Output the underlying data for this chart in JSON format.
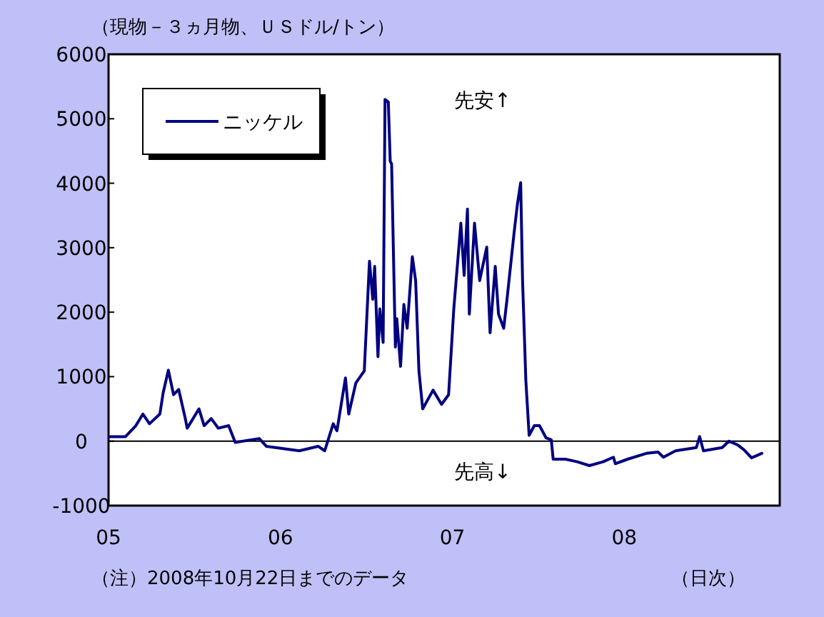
{
  "chart_data": {
    "type": "line",
    "ylabel": "（現物－３ヵ月物、ＵＳドル/トン）",
    "xlabel": "（日次）",
    "x": [
      "2005-01-03",
      "2005-02-06",
      "2005-02-28",
      "2005-03-15",
      "2005-03-29",
      "2005-04-20",
      "2005-04-27",
      "2005-05-08",
      "2005-05-19",
      "2005-05-30",
      "2005-06-13",
      "2005-06-17",
      "2005-07-12",
      "2005-07-23",
      "2005-08-07",
      "2005-08-22",
      "2005-09-13",
      "2005-09-27",
      "2005-11-17",
      "2005-12-02",
      "2006-02-10",
      "2006-03-22",
      "2006-04-05",
      "2006-04-23",
      "2006-05-01",
      "2006-05-19",
      "2006-05-26",
      "2006-06-10",
      "2006-06-28",
      "2006-07-09",
      "2006-07-16",
      "2006-07-20",
      "2006-07-27",
      "2006-07-31",
      "2006-08-07",
      "2006-08-11",
      "2006-08-18",
      "2006-08-22",
      "2006-08-25",
      "2006-09-02",
      "2006-09-05",
      "2006-09-13",
      "2006-09-20",
      "2006-09-27",
      "2006-10-08",
      "2006-10-15",
      "2006-10-22",
      "2006-10-30",
      "2006-11-21",
      "2006-12-09",
      "2006-12-24",
      "2007-01-04",
      "2007-01-19",
      "2007-01-26",
      "2007-02-02",
      "2007-02-06",
      "2007-02-17",
      "2007-02-28",
      "2007-03-15",
      "2007-03-22",
      "2007-04-02",
      "2007-04-09",
      "2007-04-20",
      "2007-04-27",
      "2007-05-12",
      "2007-05-19",
      "2007-05-26",
      "2007-05-30",
      "2007-06-06",
      "2007-06-13",
      "2007-06-24",
      "2007-07-05",
      "2007-07-19",
      "2007-07-30",
      "2007-08-03",
      "2007-08-29",
      "2007-09-23",
      "2007-10-19",
      "2007-11-17",
      "2007-12-09",
      "2007-12-13",
      "2008-01-08",
      "2008-02-17",
      "2008-03-13",
      "2008-03-24",
      "2008-04-19",
      "2008-06-02",
      "2008-06-09",
      "2008-06-17",
      "2008-07-27",
      "2008-08-10",
      "2008-08-29",
      "2008-09-12",
      "2008-09-27",
      "2008-10-19"
    ],
    "series": [
      {
        "name": "ニッケル",
        "color": "#000080",
        "values": [
          70,
          70,
          240,
          420,
          270,
          420,
          750,
          1100,
          720,
          800,
          350,
          200,
          500,
          240,
          350,
          200,
          240,
          -20,
          40,
          -80,
          -150,
          -80,
          -150,
          270,
          160,
          980,
          420,
          900,
          1090,
          2790,
          2200,
          2710,
          1310,
          2050,
          1530,
          5300,
          5260,
          4340,
          4300,
          1460,
          1900,
          1160,
          2120,
          1750,
          2860,
          2490,
          1090,
          500,
          790,
          570,
          720,
          2050,
          3380,
          2570,
          3600,
          1970,
          3380,
          2490,
          3010,
          1680,
          2710,
          1970,
          1750,
          2200,
          3230,
          3670,
          4010,
          2490,
          940,
          90,
          240,
          240,
          50,
          20,
          -280,
          -280,
          -320,
          -380,
          -320,
          -250,
          -350,
          -280,
          -190,
          -170,
          -250,
          -150,
          -100,
          70,
          -150,
          -100,
          0,
          -60,
          -140,
          -260,
          -190
        ]
      }
    ],
    "xlim": [
      "2005-01-01",
      "2008-11-26"
    ],
    "xticks": [
      {
        "value": "2005-01-01",
        "label": "05"
      },
      {
        "value": "2006-01-01",
        "label": "06"
      },
      {
        "value": "2007-01-01",
        "label": "07"
      },
      {
        "value": "2008-01-01",
        "label": "08"
      }
    ],
    "ylim": [
      -1000,
      6000
    ],
    "yticks": [
      -1000,
      0,
      1000,
      2000,
      3000,
      4000,
      5000,
      6000
    ],
    "ref_lines": [
      {
        "axis": "y",
        "value": 0,
        "color": "#000000"
      }
    ],
    "legend": "top left",
    "annotations": [
      "先安↑",
      "先高↓",
      "（注）2008年10月22日までのデータ"
    ]
  }
}
